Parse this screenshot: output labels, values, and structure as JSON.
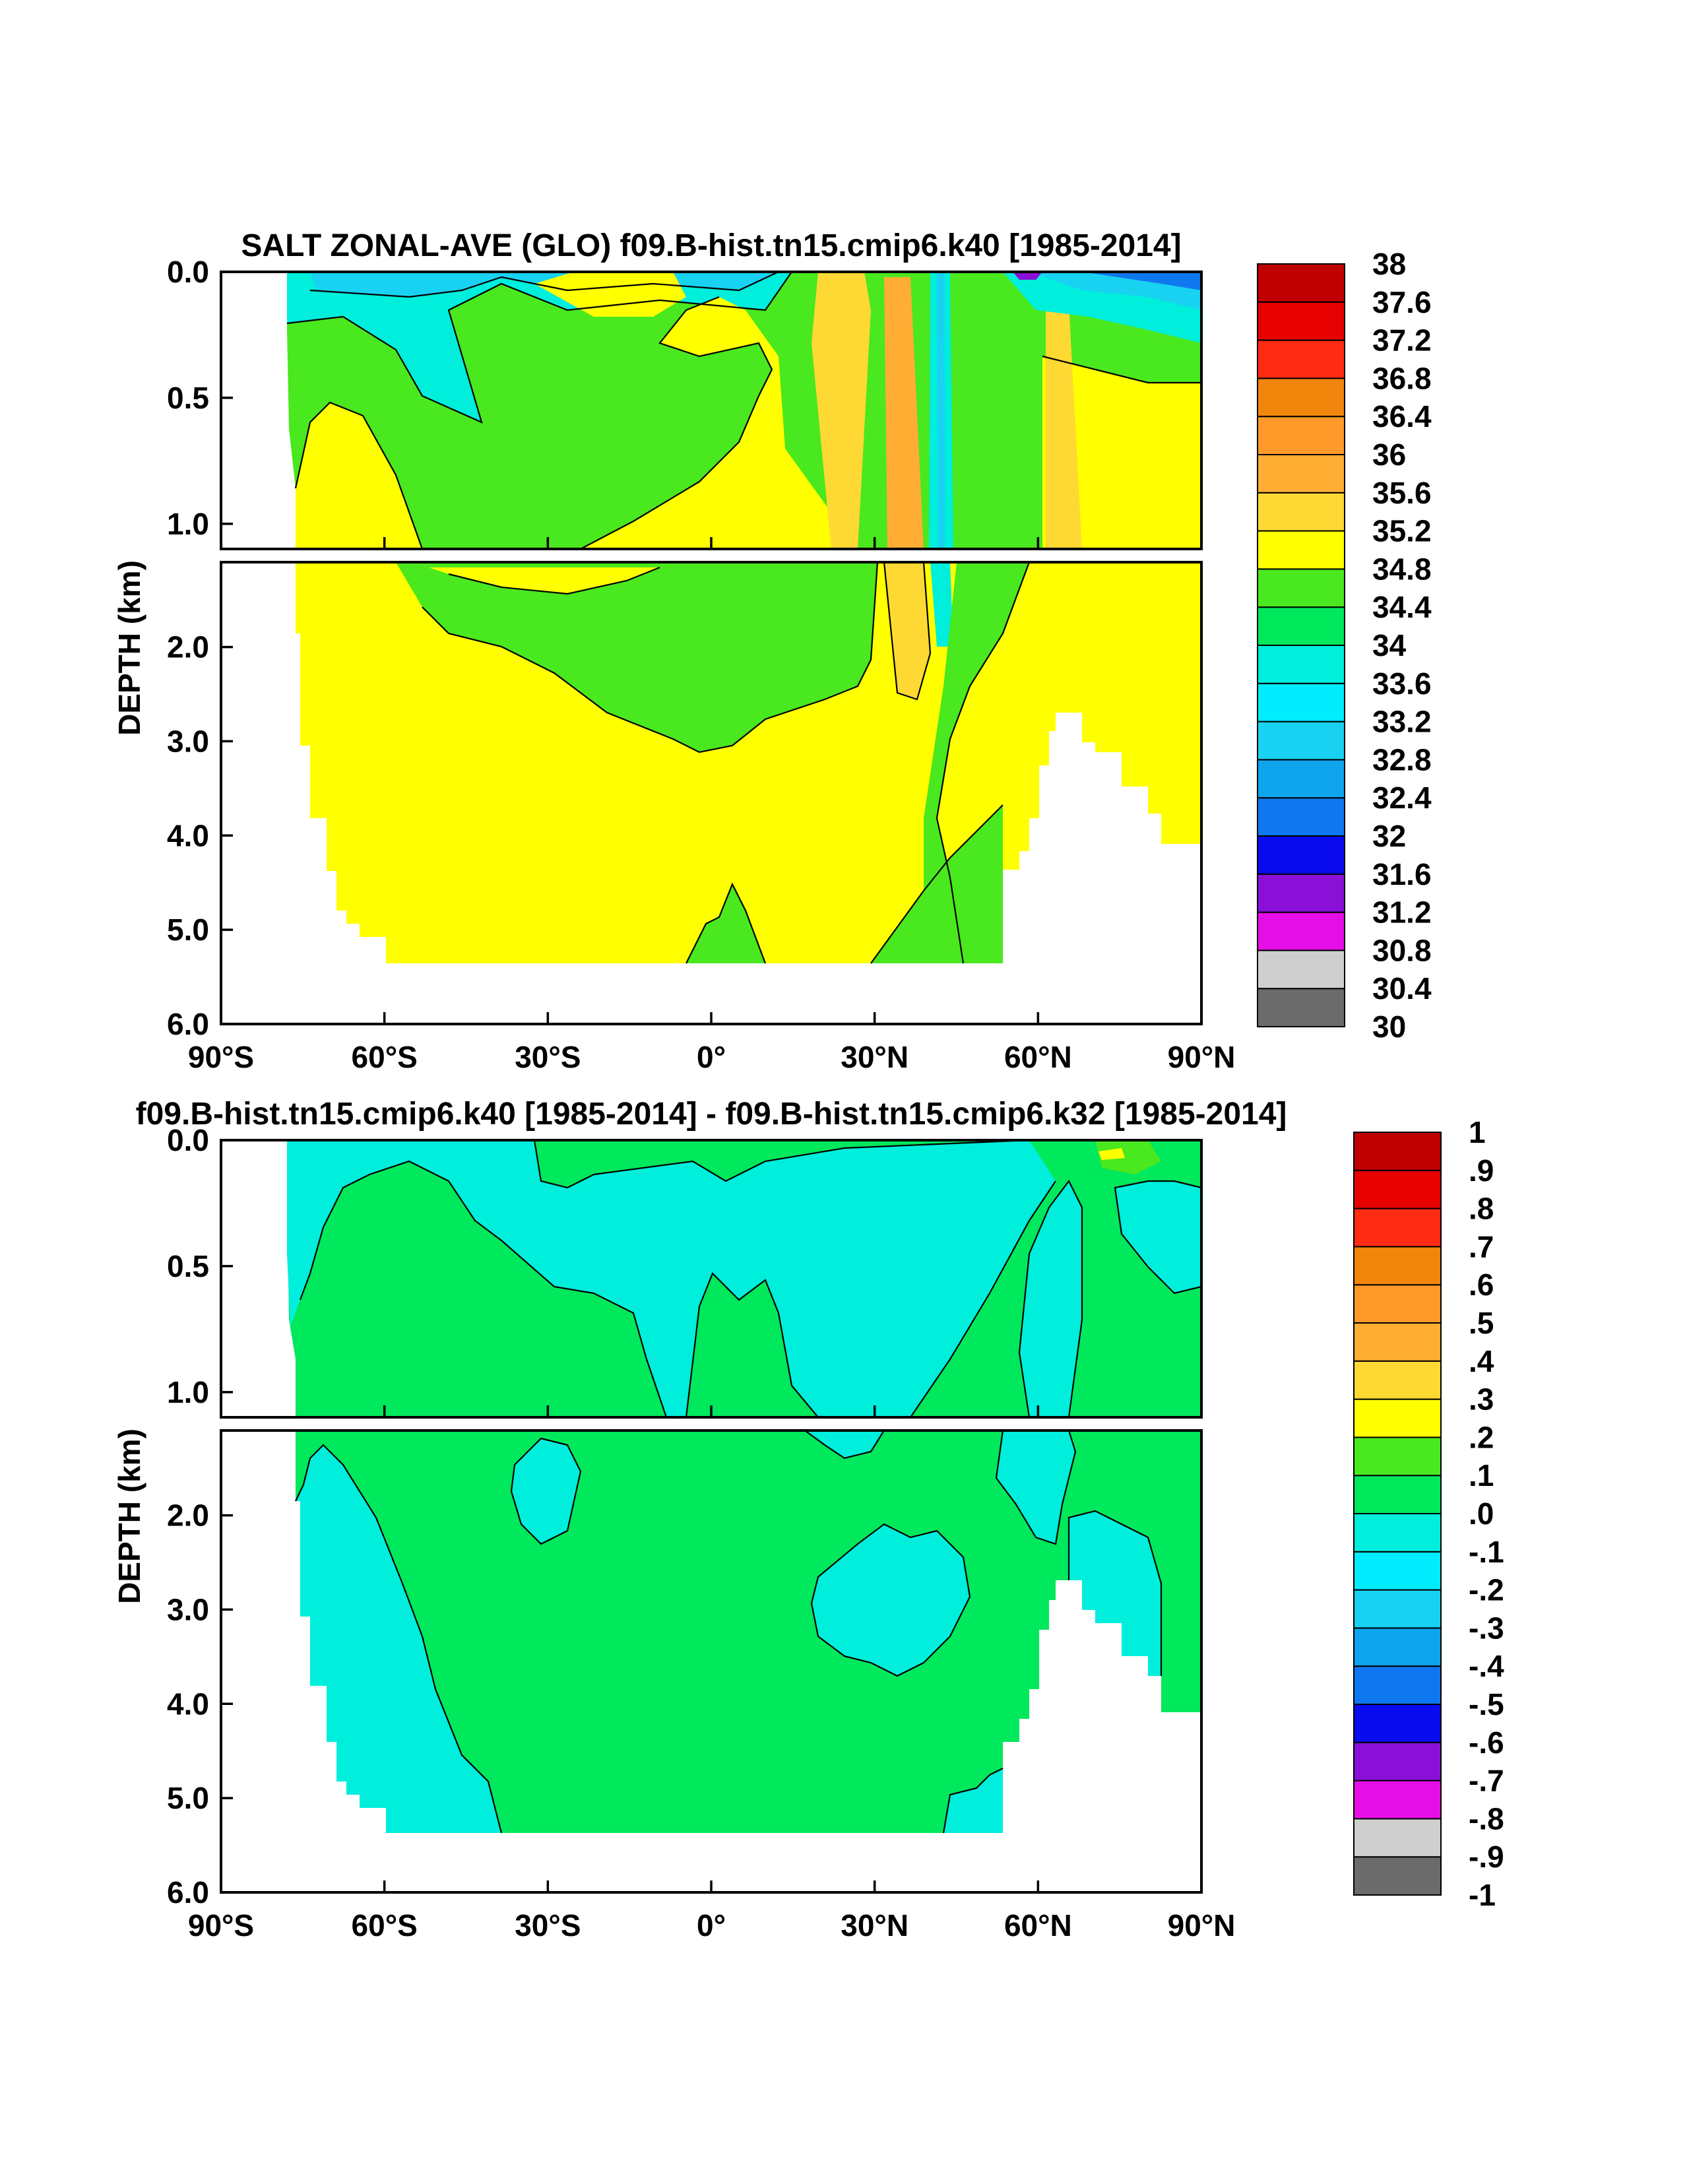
{
  "colors": {
    "salt": [
      "#6b6b6b",
      "#cfcfcf",
      "#e60ee6",
      "#8a10d8",
      "#0a0aee",
      "#0f78f0",
      "#0ea4ee",
      "#19d2f2",
      "#00ecff",
      "#00eedc",
      "#00e85c",
      "#4ae81e",
      "#ffff00",
      "#ffd933",
      "#ffad33",
      "#ff9a2a",
      "#f2850c",
      "#ff2b12",
      "#e60000",
      "#c00000"
    ],
    "diff": [
      "#6b6b6b",
      "#cfcfcf",
      "#e60ee6",
      "#8a10d8",
      "#0a0aee",
      "#0f78f0",
      "#0ea4ee",
      "#19d2f2",
      "#00ecff",
      "#00eedc",
      "#00e85c",
      "#4ae81e",
      "#ffff00",
      "#ffd933",
      "#ffad33",
      "#ff9a2a",
      "#f2850c",
      "#ff2b12",
      "#e60000",
      "#c00000"
    ]
  },
  "chart_data": [
    {
      "type": "heatmap",
      "title": "SALT ZONAL-AVE (GLO) f09.B-hist.tn15.cmip6.k40 [1985-2014]",
      "xlabel": "",
      "ylabel": "DEPTH (km)",
      "x_ticks": [
        "90°S",
        "60°S",
        "30°S",
        "0°",
        "30°N",
        "60°N",
        "90°N"
      ],
      "x_values": [
        -90,
        -60,
        -30,
        0,
        30,
        60,
        90
      ],
      "y_ticks_upper": [
        "0.0",
        "0.5",
        "1.0"
      ],
      "y_values_upper": [
        0.0,
        0.5,
        1.0
      ],
      "y_ticks_lower": [
        "2.0",
        "3.0",
        "4.0",
        "5.0",
        "6.0"
      ],
      "y_values_lower": [
        2.0,
        3.0,
        4.0,
        5.0,
        6.0
      ],
      "upper_panel_depth_range": [
        0.0,
        1.1
      ],
      "lower_panel_depth_range": [
        1.1,
        6.0
      ],
      "colorbar": {
        "labels": [
          "30",
          "30.4",
          "30.8",
          "31.2",
          "31.6",
          "32",
          "32.4",
          "32.8",
          "33.2",
          "33.6",
          "34",
          "34.4",
          "34.8",
          "35.2",
          "35.6",
          "36",
          "36.4",
          "36.8",
          "37.2",
          "37.6",
          "38"
        ],
        "levels": [
          30,
          30.4,
          30.8,
          31.2,
          31.6,
          32,
          32.4,
          32.8,
          33.2,
          33.6,
          34,
          34.4,
          34.8,
          35.2,
          35.6,
          36,
          36.4,
          36.8,
          37.2,
          37.6,
          38
        ]
      }
    },
    {
      "type": "heatmap",
      "title": "f09.B-hist.tn15.cmip6.k40 [1985-2014] - f09.B-hist.tn15.cmip6.k32 [1985-2014]",
      "xlabel": "",
      "ylabel": "DEPTH (km)",
      "x_ticks": [
        "90°S",
        "60°S",
        "30°S",
        "0°",
        "30°N",
        "60°N",
        "90°N"
      ],
      "x_values": [
        -90,
        -60,
        -30,
        0,
        30,
        60,
        90
      ],
      "y_ticks_upper": [
        "0.0",
        "0.5",
        "1.0"
      ],
      "y_values_upper": [
        0.0,
        0.5,
        1.0
      ],
      "y_ticks_lower": [
        "2.0",
        "3.0",
        "4.0",
        "5.0",
        "6.0"
      ],
      "y_values_lower": [
        2.0,
        3.0,
        4.0,
        5.0,
        6.0
      ],
      "upper_panel_depth_range": [
        0.0,
        1.1
      ],
      "lower_panel_depth_range": [
        1.1,
        6.0
      ],
      "colorbar": {
        "labels": [
          "-1",
          "-.9",
          "-.8",
          "-.7",
          "-.6",
          "-.5",
          "-.4",
          "-.3",
          "-.2",
          "-.1",
          ".0",
          ".1",
          ".2",
          ".3",
          ".4",
          ".5",
          ".6",
          ".7",
          ".8",
          ".9",
          "1"
        ],
        "levels": [
          -1,
          -0.9,
          -0.8,
          -0.7,
          -0.6,
          -0.5,
          -0.4,
          -0.3,
          -0.2,
          -0.1,
          0,
          0.1,
          0.2,
          0.3,
          0.4,
          0.5,
          0.6,
          0.7,
          0.8,
          0.9,
          1
        ]
      }
    }
  ]
}
